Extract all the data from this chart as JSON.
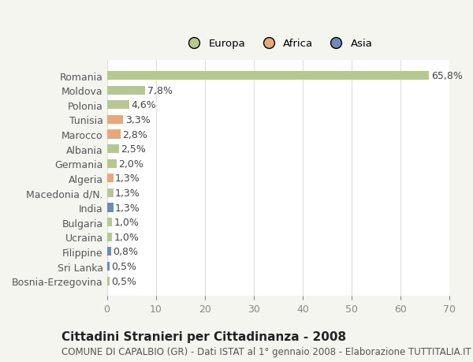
{
  "categories": [
    "Romania",
    "Moldova",
    "Polonia",
    "Tunisia",
    "Marocco",
    "Albania",
    "Germania",
    "Algeria",
    "Macedonia d/N.",
    "India",
    "Bulgaria",
    "Ucraina",
    "Filippine",
    "Sri Lanka",
    "Bosnia-Erzegovina"
  ],
  "values": [
    65.8,
    7.8,
    4.6,
    3.3,
    2.8,
    2.5,
    2.0,
    1.3,
    1.3,
    1.3,
    1.0,
    1.0,
    0.8,
    0.5,
    0.5
  ],
  "labels": [
    "65,8%",
    "7,8%",
    "4,6%",
    "3,3%",
    "2,8%",
    "2,5%",
    "2,0%",
    "1,3%",
    "1,3%",
    "1,3%",
    "1,0%",
    "1,0%",
    "0,8%",
    "0,5%",
    "0,5%"
  ],
  "continents": [
    "Europa",
    "Europa",
    "Europa",
    "Africa",
    "Africa",
    "Europa",
    "Europa",
    "Africa",
    "Europa",
    "Asia",
    "Europa",
    "Europa",
    "Asia",
    "Asia",
    "Europa"
  ],
  "colors": {
    "Europa": "#b5c98e",
    "Africa": "#e8a87c",
    "Asia": "#6b8cba"
  },
  "legend_order": [
    "Europa",
    "Africa",
    "Asia"
  ],
  "legend_colors": [
    "#b5c98e",
    "#e8a87c",
    "#6b8cba"
  ],
  "title": "Cittadini Stranieri per Cittadinanza - 2008",
  "subtitle": "COMUNE DI CAPALBIO (GR) - Dati ISTAT al 1° gennaio 2008 - Elaborazione TUTTITALIA.IT",
  "xlim": [
    0,
    70
  ],
  "xticks": [
    0,
    10,
    20,
    30,
    40,
    50,
    60,
    70
  ],
  "background_color": "#f5f5f0",
  "plot_background": "#ffffff",
  "grid_color": "#dddddd",
  "bar_height": 0.6,
  "label_fontsize": 9,
  "tick_fontsize": 9,
  "title_fontsize": 11,
  "subtitle_fontsize": 8.5
}
